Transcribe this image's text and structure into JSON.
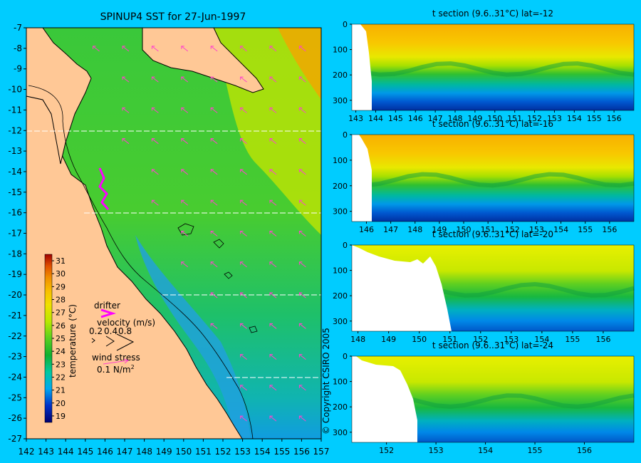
{
  "colors": {
    "background": "#00ccff",
    "land": "#ffc896",
    "coast": "#000000",
    "wind_arrow": "#ff44cc",
    "drifter": "#ff00ff"
  },
  "map": {
    "title": "SPINUP4 SST for 27-Jun-1997",
    "copyright": "© Copyright CSIRO 2005",
    "xlim": [
      142,
      157
    ],
    "ylim": [
      -27,
      -7
    ],
    "x_ticks": [
      "142",
      "143",
      "144",
      "145",
      "146",
      "147",
      "148",
      "149",
      "150",
      "151",
      "152",
      "153",
      "154",
      "155",
      "156",
      "157"
    ],
    "y_ticks": [
      "-7",
      "-8",
      "-9",
      "-10",
      "-11",
      "-12",
      "-13",
      "-14",
      "-15",
      "-16",
      "-17",
      "-18",
      "-19",
      "-20",
      "-21",
      "-22",
      "-23",
      "-24",
      "-25",
      "-26",
      "-27"
    ],
    "section_lats": [
      -12,
      -16,
      -20,
      -24
    ]
  },
  "colorbar": {
    "label": "temperature (°C)",
    "ticks": [
      "19",
      "20",
      "21",
      "22",
      "23",
      "24",
      "25",
      "26",
      "27",
      "28",
      "29",
      "30",
      "31"
    ],
    "range": [
      18.5,
      31.5
    ]
  },
  "legend": {
    "drifter": "drifter",
    "velocity_label": "velocity (m/s)",
    "velocity_values": [
      "0.2",
      "0.4",
      "0.8"
    ],
    "wind_label": "wind stress",
    "wind_value": "0.1 N/m",
    "wind_exp": "2"
  },
  "chart_data": [
    {
      "type": "heatmap",
      "title": "SPINUP4 SST for 27-Jun-1997",
      "variable": "sea surface temperature (°C)",
      "xlim": [
        142,
        157
      ],
      "ylim": [
        -27,
        -7
      ],
      "color_range": [
        19,
        31
      ]
    },
    {
      "type": "heatmap",
      "title": "t section (9.6..31°C) lat=-12",
      "xlim": [
        142.8,
        157
      ],
      "ylim": [
        340,
        0
      ],
      "x_ticks": [
        "143",
        "144",
        "145",
        "146",
        "147",
        "148",
        "149",
        "150",
        "151",
        "152",
        "153",
        "154",
        "155",
        "156"
      ],
      "y_ticks": [
        "0",
        "100",
        "200",
        "300"
      ]
    },
    {
      "type": "heatmap",
      "title": "t section (9.6..31°C) lat=-16",
      "xlim": [
        145.4,
        157
      ],
      "ylim": [
        340,
        0
      ],
      "x_ticks": [
        "146",
        "147",
        "148",
        "149",
        "150",
        "151",
        "152",
        "153",
        "154",
        "155",
        "156"
      ],
      "y_ticks": [
        "0",
        "100",
        "200",
        "300"
      ]
    },
    {
      "type": "heatmap",
      "title": "t section (9.6..31°C) lat=-20",
      "xlim": [
        147.8,
        157
      ],
      "ylim": [
        340,
        0
      ],
      "x_ticks": [
        "148",
        "149",
        "150",
        "151",
        "152",
        "153",
        "154",
        "155",
        "156"
      ],
      "y_ticks": [
        "0",
        "100",
        "200",
        "300"
      ]
    },
    {
      "type": "heatmap",
      "title": "t section (9.6..31°C) lat=-24",
      "xlim": [
        151.3,
        157
      ],
      "ylim": [
        340,
        0
      ],
      "x_ticks": [
        "152",
        "153",
        "154",
        "155",
        "156"
      ],
      "y_ticks": [
        "0",
        "100",
        "200",
        "300"
      ]
    }
  ]
}
